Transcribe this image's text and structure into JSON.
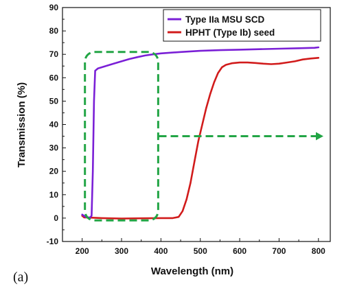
{
  "chart_data": {
    "type": "line",
    "panel_label": "(a)",
    "xlabel": "Wavelength (nm)",
    "ylabel": "Transmission (%)",
    "xlim": [
      150,
      830
    ],
    "ylim": [
      -10,
      90
    ],
    "xticks": [
      200,
      300,
      400,
      500,
      600,
      700,
      800
    ],
    "yticks": [
      -10,
      0,
      10,
      20,
      30,
      40,
      50,
      60,
      70,
      80,
      90
    ],
    "grid": false,
    "legend_position": "top-right",
    "series": [
      {
        "name": "Type IIa MSU SCD",
        "color": "#7a1fd6",
        "points": [
          [
            200,
            1.5
          ],
          [
            210,
            0.4
          ],
          [
            220,
            0.2
          ],
          [
            224,
            1
          ],
          [
            227,
            20
          ],
          [
            230,
            50
          ],
          [
            233,
            63
          ],
          [
            240,
            64
          ],
          [
            260,
            65
          ],
          [
            280,
            66
          ],
          [
            300,
            67
          ],
          [
            320,
            68
          ],
          [
            340,
            68.8
          ],
          [
            360,
            69.5
          ],
          [
            380,
            70
          ],
          [
            400,
            70.4
          ],
          [
            450,
            71
          ],
          [
            500,
            71.5
          ],
          [
            550,
            71.8
          ],
          [
            600,
            72
          ],
          [
            650,
            72.2
          ],
          [
            700,
            72.4
          ],
          [
            750,
            72.6
          ],
          [
            790,
            72.8
          ],
          [
            800,
            73
          ]
        ]
      },
      {
        "name": "HPHT (Type Ib) seed",
        "color": "#d11b1b",
        "points": [
          [
            200,
            1
          ],
          [
            205,
            0.3
          ],
          [
            220,
            0.2
          ],
          [
            250,
            0
          ],
          [
            300,
            -0.2
          ],
          [
            350,
            -0.1
          ],
          [
            400,
            0
          ],
          [
            430,
            0
          ],
          [
            445,
            0.5
          ],
          [
            455,
            3
          ],
          [
            465,
            8
          ],
          [
            475,
            15
          ],
          [
            485,
            24
          ],
          [
            495,
            33
          ],
          [
            505,
            40
          ],
          [
            515,
            47
          ],
          [
            525,
            53
          ],
          [
            535,
            58
          ],
          [
            545,
            62
          ],
          [
            555,
            64.5
          ],
          [
            565,
            65.5
          ],
          [
            580,
            66.2
          ],
          [
            600,
            66.5
          ],
          [
            620,
            66.5
          ],
          [
            640,
            66.3
          ],
          [
            660,
            66
          ],
          [
            680,
            65.8
          ],
          [
            700,
            66
          ],
          [
            720,
            66.5
          ],
          [
            740,
            67
          ],
          [
            760,
            67.8
          ],
          [
            780,
            68.2
          ],
          [
            800,
            68.5
          ]
        ]
      }
    ],
    "annotations": {
      "highlight_box": {
        "x0": 207,
        "x1": 393,
        "y0": -1,
        "y1": 71,
        "color": "#22a545"
      },
      "arrow": {
        "x0": 395,
        "x1": 830,
        "y": 35,
        "color": "#22a545"
      }
    }
  }
}
